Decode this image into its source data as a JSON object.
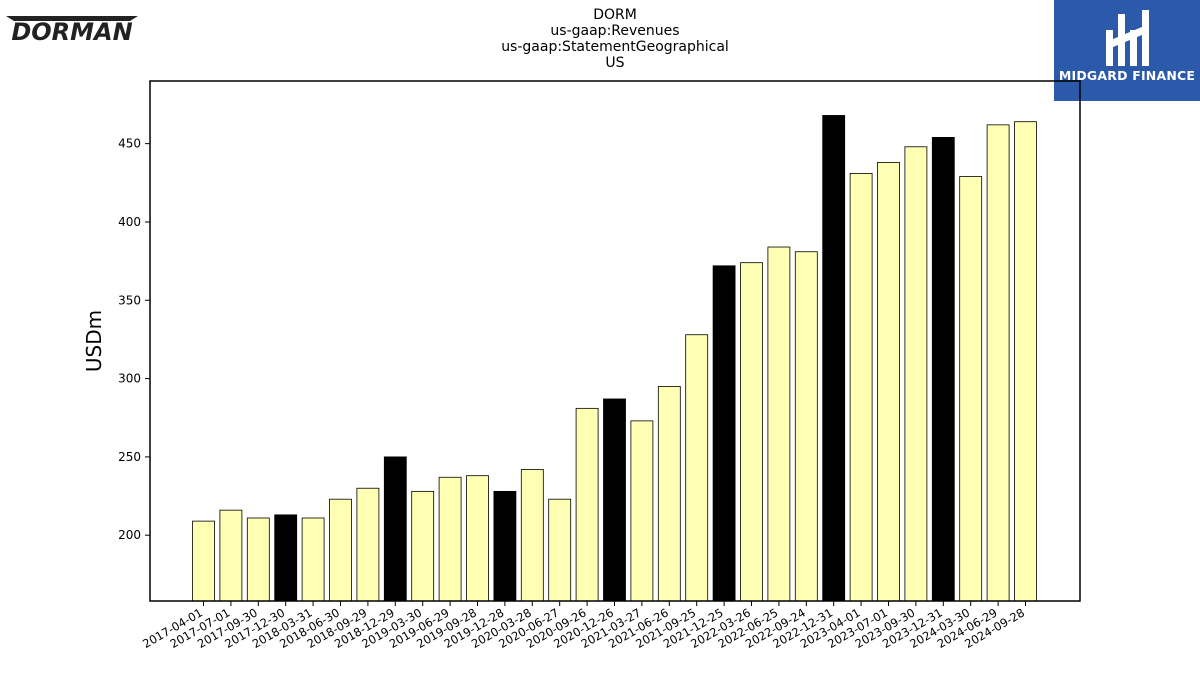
{
  "branding": {
    "left_logo_text": "DORMAN",
    "right_logo_text": "MIDGARD FINANCE"
  },
  "chart_data": {
    "type": "bar",
    "title": [
      "DORM",
      "us-gaap:Revenues",
      "us-gaap:StatementGeographical",
      "US"
    ],
    "xlabel": "",
    "ylabel": "USDm",
    "ylim": [
      158,
      490
    ],
    "yticks": [
      200,
      250,
      300,
      350,
      400,
      450
    ],
    "grid": false,
    "categories": [
      "2017-04-01",
      "2017-07-01",
      "2017-09-30",
      "2017-12-30",
      "2018-03-31",
      "2018-06-30",
      "2018-09-29",
      "2018-12-29",
      "2019-03-30",
      "2019-06-29",
      "2019-09-28",
      "2019-12-28",
      "2020-03-28",
      "2020-06-27",
      "2020-09-26",
      "2020-12-26",
      "2021-03-27",
      "2021-06-26",
      "2021-09-25",
      "2021-12-25",
      "2022-03-26",
      "2022-06-25",
      "2022-09-24",
      "2022-12-31",
      "2023-04-01",
      "2023-07-01",
      "2023-09-30",
      "2023-12-31",
      "2024-03-30",
      "2024-06-29",
      "2024-09-28"
    ],
    "values": [
      209,
      216,
      211,
      213,
      211,
      223,
      230,
      250,
      228,
      237,
      238,
      228,
      242,
      223,
      281,
      287,
      273,
      295,
      328,
      372,
      374,
      384,
      381,
      468,
      431,
      438,
      448,
      454,
      429,
      462,
      464
    ],
    "highlight": [
      false,
      false,
      false,
      true,
      false,
      false,
      false,
      true,
      false,
      false,
      false,
      true,
      false,
      false,
      false,
      true,
      false,
      false,
      false,
      true,
      false,
      false,
      false,
      true,
      false,
      false,
      false,
      true,
      false,
      false,
      false
    ],
    "colors": {
      "default": "#ffffb3",
      "highlight": "#000000",
      "edge": "#000000"
    }
  }
}
